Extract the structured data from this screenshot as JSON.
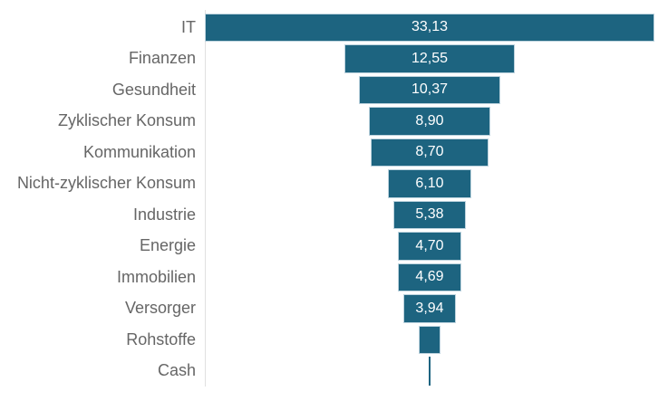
{
  "chart_data": {
    "type": "bar",
    "subtype": "funnel",
    "orientation": "horizontal-centered",
    "title": "",
    "xlabel": "",
    "ylabel": "",
    "grid": false,
    "legend": false,
    "xlim": [
      0,
      33.13
    ],
    "categories": [
      "IT",
      "Finanzen",
      "Gesundheit",
      "Zyklischer Konsum",
      "Kommunikation",
      "Nicht-zyklischer Konsum",
      "Industrie",
      "Energie",
      "Immobilien",
      "Versorger",
      "Rohstoffe",
      "Cash"
    ],
    "values": [
      33.13,
      12.55,
      10.37,
      8.9,
      8.7,
      6.1,
      5.38,
      4.7,
      4.69,
      3.94,
      1.6,
      0.1
    ],
    "value_labels": [
      "33,13",
      "12,55",
      "10,37",
      "8,90",
      "8,70",
      "6,10",
      "5,38",
      "4,70",
      "4,69",
      "3,94",
      "",
      ""
    ],
    "colors": {
      "bar": "#1d6480",
      "bar_border": "#bdd3de",
      "category_label": "#666666",
      "value_label": "#ffffff",
      "axis_line": "#e0e0e0",
      "background": "#ffffff"
    }
  }
}
